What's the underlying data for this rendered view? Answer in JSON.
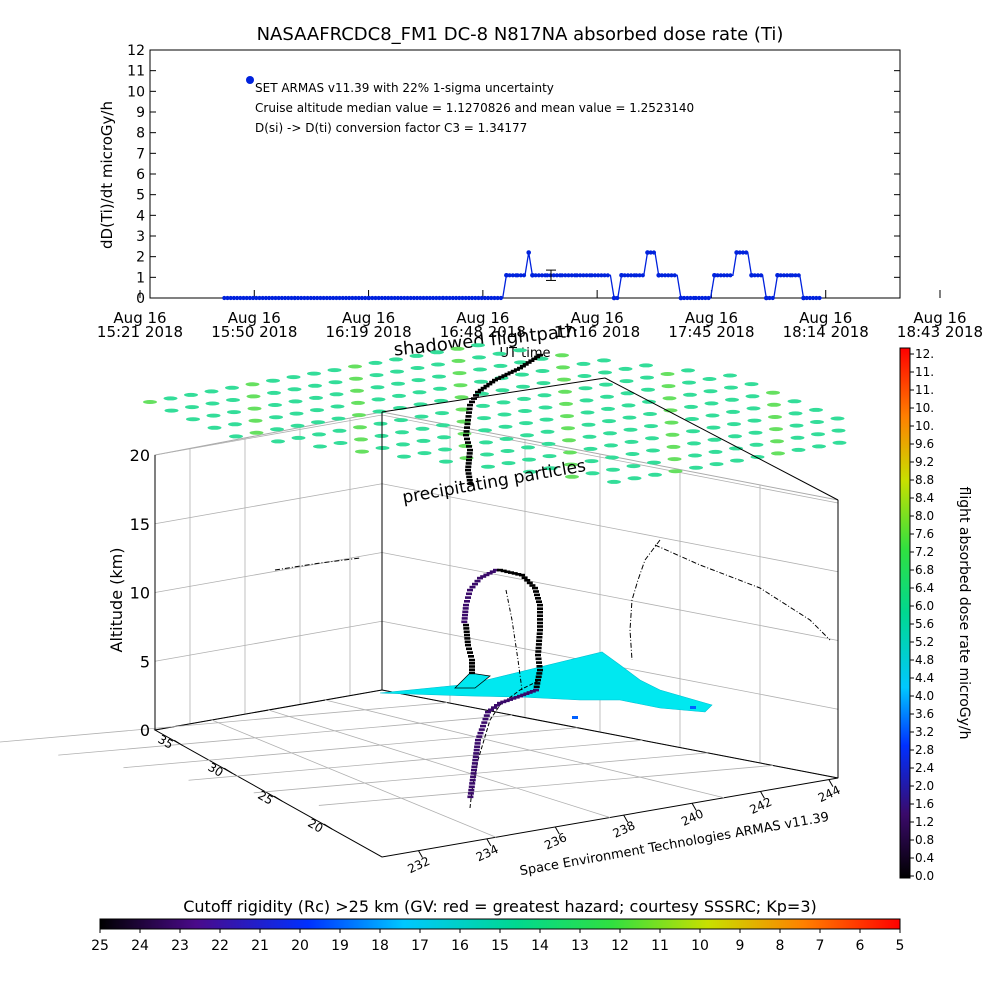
{
  "title": "NASAAFRCDC8_FM1 DC-8    N817NA absorbed dose rate (Ti)",
  "top_chart": {
    "ylabel": "dD(Ti)/dt microGy/h",
    "xlabel": "UT time",
    "legend": {
      "marker_label": "SET ARMAS v11.39 with 22% 1-sigma uncertainty",
      "line2": "Cruise altitude median value = 1.1270826 and mean value = 1.2523140",
      "line3": "D(si) -> D(ti) conversion factor C3 = 1.34177"
    },
    "y_ticks": [
      "0",
      "1",
      "2",
      "3",
      "4",
      "5",
      "6",
      "7",
      "8",
      "9",
      "10",
      "11",
      "12"
    ],
    "x_ticks": [
      {
        "top": "Aug 16",
        "bottom": "15:21 2018"
      },
      {
        "top": "Aug 16",
        "bottom": "15:50 2018"
      },
      {
        "top": "Aug 16",
        "bottom": "16:19 2018"
      },
      {
        "top": "Aug 16",
        "bottom": "16:48 2018"
      },
      {
        "top": "Aug 16",
        "bottom": "17:16 2018"
      },
      {
        "top": "Aug 16",
        "bottom": "17:45 2018"
      },
      {
        "top": "Aug 16",
        "bottom": "18:14 2018"
      },
      {
        "top": "Aug 16",
        "bottom": "18:43 2018"
      }
    ],
    "overlay_text": "shadowed flightpath"
  },
  "chart_data": {
    "type": "line",
    "title": "NASAAFRCDC8_FM1 DC-8    N817NA absorbed dose rate (Ti)",
    "xlabel": "UT time",
    "ylabel": "dD(Ti)/dt microGy/h",
    "ylim": [
      0,
      12
    ],
    "xlim": [
      "15:21",
      "18:43"
    ],
    "grid": false,
    "legend_position": "top-left",
    "series": [
      {
        "name": "SET ARMAS v11.39 with 22% 1-sigma uncertainty",
        "points": [
          [
            "15:41",
            0.0
          ],
          [
            "16:00",
            0.0
          ],
          [
            "16:20",
            0.0
          ],
          [
            "16:40",
            0.0
          ],
          [
            "16:56",
            0.0
          ],
          [
            "16:57",
            1.1
          ],
          [
            "17:00",
            1.1
          ],
          [
            "17:02",
            1.1
          ],
          [
            "17:03",
            2.2
          ],
          [
            "17:04",
            1.1
          ],
          [
            "17:08",
            1.1
          ],
          [
            "17:12",
            1.1
          ],
          [
            "17:16",
            1.1
          ],
          [
            "17:20",
            1.1
          ],
          [
            "17:25",
            1.1
          ],
          [
            "17:26",
            0.0
          ],
          [
            "17:27",
            0.0
          ],
          [
            "17:28",
            1.1
          ],
          [
            "17:32",
            1.1
          ],
          [
            "17:34",
            1.1
          ],
          [
            "17:35",
            2.2
          ],
          [
            "17:37",
            2.2
          ],
          [
            "17:38",
            1.1
          ],
          [
            "17:43",
            1.1
          ],
          [
            "17:44",
            0.0
          ],
          [
            "17:48",
            0.0
          ],
          [
            "17:52",
            0.0
          ],
          [
            "17:53",
            1.1
          ],
          [
            "17:58",
            1.1
          ],
          [
            "17:59",
            2.2
          ],
          [
            "18:02",
            2.2
          ],
          [
            "18:03",
            1.1
          ],
          [
            "18:06",
            1.1
          ],
          [
            "18:07",
            0.0
          ],
          [
            "18:09",
            0.0
          ],
          [
            "18:10",
            1.1
          ],
          [
            "18:14",
            1.1
          ],
          [
            "18:16",
            1.1
          ],
          [
            "18:17",
            0.0
          ],
          [
            "18:22",
            0.0
          ]
        ]
      }
    ],
    "error_bar": {
      "x": "17:09",
      "y": 1.1,
      "low": 0.85,
      "high": 1.35
    }
  },
  "scene3d": {
    "z_label": "Altitude (km)",
    "z_ticks": [
      "0",
      "5",
      "10",
      "15",
      "20"
    ],
    "lat_ticks": [
      "20",
      "25",
      "30",
      "35"
    ],
    "lon_ticks": [
      "232",
      "234",
      "236",
      "238",
      "240",
      "242",
      "244"
    ],
    "credit": "Space Environment Technologies ARMAS v11.39",
    "layer_label": "precipitating particles",
    "layer_color": "#33dd99",
    "ground_color": "#00e8f0"
  },
  "dose_colorbar": {
    "title": "flight absorbed dose rate microGy/h",
    "ticks": [
      "0.0",
      "0.4",
      "0.8",
      "1.2",
      "1.6",
      "2.0",
      "2.4",
      "2.8",
      "3.2",
      "3.6",
      "4.0",
      "4.4",
      "4.8",
      "5.2",
      "5.6",
      "6.0",
      "6.4",
      "6.8",
      "7.2",
      "7.6",
      "8.0",
      "8.4",
      "8.8",
      "9.2",
      "9.6",
      "10.",
      "10.",
      "11.",
      "11.",
      "12."
    ]
  },
  "cutoff_colorbar": {
    "title": "Cutoff rigidity (Rc) >25 km (GV: red = greatest hazard; courtesy SSSRC; Kp=3)",
    "ticks": [
      "25",
      "24",
      "23",
      "22",
      "21",
      "20",
      "19",
      "18",
      "17",
      "16",
      "15",
      "14",
      "13",
      "12",
      "11",
      "10",
      "9",
      "8",
      "7",
      "6",
      "5"
    ]
  }
}
